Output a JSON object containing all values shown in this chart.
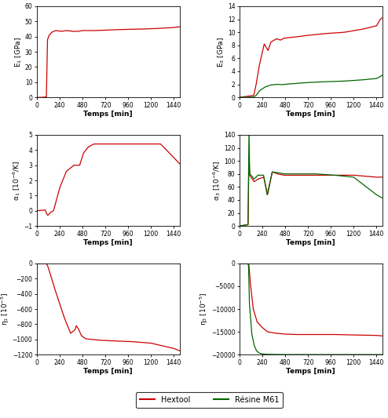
{
  "hextool_color": "#cc0000",
  "resin_color": "#006600",
  "background": "#ffffff",
  "xlabel": "Temps [min]",
  "xmax": 1500,
  "xticks": [
    0,
    240,
    480,
    720,
    960,
    1200,
    1440
  ],
  "panels": [
    {
      "ylabel": "E$_1$ [GPa]",
      "ylim": [
        0,
        60
      ],
      "yticks": [
        0,
        10,
        20,
        30,
        40,
        50,
        60
      ],
      "has_resin": false,
      "hextool_x": [
        0,
        50,
        100,
        112,
        130,
        160,
        200,
        260,
        310,
        380,
        430,
        480,
        540,
        600,
        700,
        800,
        960,
        1100,
        1200,
        1300,
        1440,
        1500
      ],
      "hextool_y": [
        0,
        0,
        0.3,
        38,
        41,
        43,
        44,
        43.5,
        44,
        43.5,
        43.5,
        44,
        44,
        44,
        44.2,
        44.5,
        44.8,
        45,
        45.2,
        45.5,
        46,
        46.5
      ],
      "resin_x": [],
      "resin_y": []
    },
    {
      "ylabel": "E$_3$ [GPa]",
      "ylim": [
        0,
        14
      ],
      "yticks": [
        0,
        2,
        4,
        6,
        8,
        10,
        12,
        14
      ],
      "has_resin": true,
      "hextool_x": [
        0,
        150,
        175,
        210,
        260,
        300,
        330,
        390,
        430,
        470,
        530,
        600,
        700,
        900,
        1100,
        1300,
        1440,
        1480,
        1500
      ],
      "hextool_y": [
        0,
        0.3,
        2.0,
        5.0,
        8.2,
        7.2,
        8.5,
        9.0,
        8.8,
        9.1,
        9.2,
        9.3,
        9.5,
        9.8,
        10.0,
        10.5,
        11.0,
        12.0,
        12.2
      ],
      "resin_x": [
        0,
        150,
        175,
        210,
        270,
        330,
        400,
        450,
        510,
        570,
        640,
        750,
        900,
        1100,
        1300,
        1440,
        1480,
        1500
      ],
      "resin_y": [
        0,
        0.05,
        0.3,
        1.0,
        1.6,
        1.9,
        2.0,
        1.95,
        2.05,
        2.1,
        2.2,
        2.3,
        2.4,
        2.5,
        2.7,
        2.9,
        3.2,
        3.4
      ]
    },
    {
      "ylabel": "α$_1$ [10$^{-6}$/K]",
      "ylim": [
        -1.0,
        5.0
      ],
      "yticks": [
        -1.0,
        0.0,
        1.0,
        2.0,
        3.0,
        4.0,
        5.0
      ],
      "has_resin": false,
      "hextool_x": [
        0,
        90,
        100,
        115,
        145,
        175,
        240,
        310,
        390,
        450,
        490,
        540,
        570,
        600,
        650,
        700,
        900,
        1100,
        1300,
        1440,
        1500
      ],
      "hextool_y": [
        0.0,
        0.05,
        -0.15,
        -0.3,
        -0.1,
        0.0,
        1.5,
        2.6,
        3.0,
        3.0,
        3.8,
        4.2,
        4.3,
        4.4,
        4.4,
        4.4,
        4.4,
        4.4,
        4.4,
        3.5,
        3.1
      ],
      "resin_x": [],
      "resin_y": []
    },
    {
      "ylabel": "α$_3$ [10$^{-6}$/K]",
      "ylim": [
        0,
        140
      ],
      "yticks": [
        0,
        20,
        40,
        60,
        80,
        100,
        120,
        140
      ],
      "has_resin": true,
      "hextool_x": [
        0,
        90,
        100,
        108,
        135,
        155,
        195,
        255,
        295,
        345,
        400,
        470,
        540,
        650,
        800,
        1000,
        1200,
        1440,
        1500
      ],
      "hextool_y": [
        0,
        2,
        108,
        78,
        72,
        68,
        72,
        75,
        48,
        83,
        80,
        78,
        78,
        78,
        78,
        78,
        78,
        75,
        75
      ],
      "resin_x": [
        0,
        90,
        100,
        107,
        133,
        152,
        195,
        253,
        291,
        344,
        400,
        470,
        540,
        650,
        800,
        1000,
        1200,
        1440,
        1500
      ],
      "resin_y": [
        0,
        2,
        148,
        80,
        76,
        72,
        78,
        78,
        48,
        83,
        82,
        80,
        80,
        80,
        80,
        78,
        75,
        48,
        43
      ]
    },
    {
      "ylabel": "η$_1$ [10$^{-5}$]",
      "ylim": [
        -1200,
        0
      ],
      "yticks": [
        0,
        -200,
        -400,
        -600,
        -800,
        -1000,
        -1200
      ],
      "has_resin": false,
      "hextool_x": [
        0,
        100,
        105,
        120,
        200,
        290,
        355,
        400,
        415,
        440,
        468,
        510,
        565,
        650,
        800,
        1000,
        1200,
        1440,
        1500
      ],
      "hextool_y": [
        0,
        0,
        -10,
        -55,
        -380,
        -720,
        -920,
        -875,
        -820,
        -870,
        -950,
        -990,
        -1000,
        -1010,
        -1020,
        -1030,
        -1050,
        -1120,
        -1150
      ],
      "resin_x": [],
      "resin_y": []
    },
    {
      "ylabel": "η$_3$ [10$^{-5}$]",
      "ylim": [
        -20000,
        0
      ],
      "yticks": [
        0,
        -5000,
        -10000,
        -15000,
        -20000
      ],
      "has_resin": true,
      "hextool_x": [
        0,
        90,
        100,
        115,
        145,
        185,
        235,
        295,
        375,
        475,
        600,
        800,
        1000,
        1200,
        1440,
        1500
      ],
      "hextool_y": [
        0,
        0,
        -400,
        -4500,
        -10000,
        -12800,
        -14000,
        -15000,
        -15300,
        -15500,
        -15600,
        -15600,
        -15600,
        -15700,
        -15800,
        -15900
      ],
      "resin_x": [
        0,
        90,
        95,
        105,
        130,
        155,
        180,
        210,
        250,
        300,
        390,
        530,
        780,
        1100,
        1440,
        1500
      ],
      "resin_y": [
        0,
        0,
        -600,
        -9000,
        -15500,
        -18000,
        -19200,
        -19700,
        -19900,
        -19950,
        -19980,
        -20000,
        -20000,
        -20000,
        -20000,
        -20000
      ]
    }
  ],
  "legend_hextool": "Hextool",
  "legend_resin": "Résine M61"
}
